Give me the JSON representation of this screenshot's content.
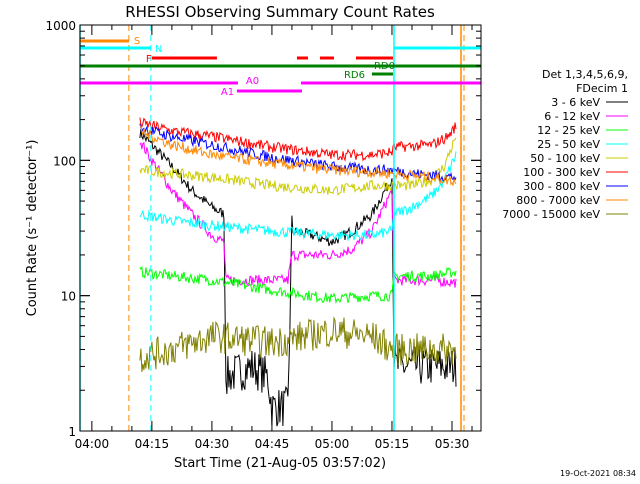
{
  "chart_data": {
    "type": "line",
    "title": "RHESSI Observing Summary Count Rates",
    "xlabel": "Start Time (21-Aug-05 03:57:02)",
    "ylabel": "Count Rate (s⁻¹ detector⁻¹)",
    "y_scale": "log",
    "ylim": [
      1,
      1000
    ],
    "xlim": [
      "03:57:02",
      "05:37:15"
    ],
    "x_ticks": [
      "04:00",
      "04:15",
      "04:30",
      "04:45",
      "05:00",
      "05:15",
      "05:30"
    ],
    "y_ticks": [
      "1",
      "10",
      "100",
      "1000"
    ],
    "grid": false,
    "legend_position": "right",
    "legend_header": [
      "Det 1,3,4,5,6,9,",
      "FDecim 1"
    ],
    "series": [
      {
        "name": "3 - 6 keV",
        "color": "#000000",
        "points": [
          [
            "04:12",
            160
          ],
          [
            "04:15",
            130
          ],
          [
            "04:20",
            90
          ],
          [
            "04:25",
            60
          ],
          [
            "04:30",
            45
          ],
          [
            "04:33",
            40
          ],
          [
            "04:33.5",
            2.5
          ],
          [
            "04:40",
            3
          ],
          [
            "04:44",
            2.5
          ],
          [
            "04:45",
            1.5
          ],
          [
            "04:49",
            1.5
          ],
          [
            "04:50",
            30
          ],
          [
            "04:55",
            28
          ],
          [
            "05:00",
            25
          ],
          [
            "05:05",
            30
          ],
          [
            "05:10",
            40
          ],
          [
            "05:15",
            75
          ],
          [
            "05:15.5",
            3
          ],
          [
            "05:25",
            3
          ],
          [
            "05:31",
            3
          ]
        ]
      },
      {
        "name": "6 - 12 keV",
        "color": "#ff00ff",
        "points": [
          [
            "04:12",
            140
          ],
          [
            "04:15",
            100
          ],
          [
            "04:20",
            60
          ],
          [
            "04:25",
            40
          ],
          [
            "04:30",
            28
          ],
          [
            "04:33",
            25
          ],
          [
            "04:33.5",
            13
          ],
          [
            "04:45",
            13
          ],
          [
            "04:49",
            13
          ],
          [
            "04:50",
            20
          ],
          [
            "05:00",
            20
          ],
          [
            "05:05",
            22
          ],
          [
            "05:10",
            30
          ],
          [
            "05:15",
            60
          ],
          [
            "05:15.5",
            13
          ],
          [
            "05:25",
            13
          ],
          [
            "05:31",
            12.5
          ]
        ]
      },
      {
        "name": "12 - 25 keV",
        "color": "#00ff00",
        "points": [
          [
            "04:12",
            15
          ],
          [
            "04:20",
            14
          ],
          [
            "04:30",
            13
          ],
          [
            "04:45",
            11
          ],
          [
            "05:00",
            9.5
          ],
          [
            "05:10",
            10
          ],
          [
            "05:15",
            10
          ],
          [
            "05:15.5",
            14
          ],
          [
            "05:25",
            14
          ],
          [
            "05:31",
            15
          ]
        ]
      },
      {
        "name": "25 - 50 keV",
        "color": "#00ffff",
        "points": [
          [
            "04:12",
            40
          ],
          [
            "04:20",
            36
          ],
          [
            "04:30",
            33
          ],
          [
            "04:45",
            30
          ],
          [
            "05:00",
            28
          ],
          [
            "05:10",
            28
          ],
          [
            "05:15",
            30
          ],
          [
            "05:15.5",
            40
          ],
          [
            "05:20",
            45
          ],
          [
            "05:25",
            55
          ],
          [
            "05:28",
            70
          ],
          [
            "05:31",
            110
          ]
        ]
      },
      {
        "name": "50 - 100 keV",
        "color": "#cccc00",
        "points": [
          [
            "04:12",
            85
          ],
          [
            "04:20",
            80
          ],
          [
            "04:30",
            75
          ],
          [
            "04:45",
            65
          ],
          [
            "05:00",
            60
          ],
          [
            "05:10",
            65
          ],
          [
            "05:15",
            65
          ],
          [
            "05:20",
            65
          ],
          [
            "05:25",
            72
          ],
          [
            "05:28",
            90
          ],
          [
            "05:31",
            150
          ]
        ]
      },
      {
        "name": "100 - 300 keV",
        "color": "#ff0000",
        "points": [
          [
            "04:12",
            190
          ],
          [
            "04:20",
            165
          ],
          [
            "04:30",
            150
          ],
          [
            "04:45",
            125
          ],
          [
            "05:00",
            110
          ],
          [
            "05:10",
            110
          ],
          [
            "05:15",
            115
          ],
          [
            "05:15.5",
            125
          ],
          [
            "05:25",
            130
          ],
          [
            "05:29",
            150
          ],
          [
            "05:31",
            180
          ]
        ]
      },
      {
        "name": "300 - 800 keV",
        "color": "#0000ff",
        "points": [
          [
            "04:12",
            175
          ],
          [
            "04:20",
            150
          ],
          [
            "04:30",
            130
          ],
          [
            "04:45",
            105
          ],
          [
            "05:00",
            90
          ],
          [
            "05:10",
            85
          ],
          [
            "05:15",
            85
          ],
          [
            "05:20",
            80
          ],
          [
            "05:31",
            75
          ]
        ]
      },
      {
        "name": "800 - 7000 keV",
        "color": "#ff8800",
        "points": [
          [
            "04:12",
            165
          ],
          [
            "04:20",
            130
          ],
          [
            "04:30",
            110
          ],
          [
            "04:45",
            95
          ],
          [
            "05:00",
            85
          ],
          [
            "05:15",
            80
          ],
          [
            "05:25",
            75
          ],
          [
            "05:31",
            70
          ]
        ]
      },
      {
        "name": "7000 - 15000 keV",
        "color": "#808000",
        "points": [
          [
            "04:12",
            3.5
          ],
          [
            "04:20",
            4
          ],
          [
            "04:30",
            5
          ],
          [
            "04:45",
            4.5
          ],
          [
            "05:00",
            5.5
          ],
          [
            "05:10",
            5
          ],
          [
            "05:15",
            4
          ],
          [
            "05:25",
            4
          ],
          [
            "05:31",
            4
          ]
        ]
      }
    ],
    "vertical_markers": [
      {
        "time": "03:57:02",
        "color": "#00ffff",
        "style": "solid"
      },
      {
        "time": "04:09:15",
        "color": "#ff8800",
        "style": "dashed"
      },
      {
        "time": "04:14:45",
        "color": "#00ffff",
        "style": "dashed"
      },
      {
        "time": "05:15:30",
        "color": "#00ffff",
        "style": "solid"
      },
      {
        "time": "05:32:15",
        "color": "#ff8800",
        "style": "solid"
      },
      {
        "time": "05:33:00",
        "color": "#ff8800",
        "style": "dashed"
      }
    ],
    "flags": [
      {
        "label": "S",
        "color": "#ff8800",
        "intervals": [
          [
            "03:57:02",
            "04:09:15"
          ]
        ]
      },
      {
        "label": "N",
        "color": "#00ffff",
        "intervals": [
          [
            "03:57:02",
            "04:14:45"
          ],
          [
            "05:15:30",
            "05:37:15"
          ]
        ]
      },
      {
        "label": "F",
        "color": "#ff0000",
        "intervals": [
          [
            "04:15:00",
            "04:31:15"
          ],
          [
            "04:51:15",
            "04:54:00"
          ],
          [
            "04:57:00",
            "05:00:30"
          ],
          [
            "05:06:00",
            "05:15:15"
          ]
        ]
      },
      {
        "label": "RD0",
        "color": "#008000",
        "intervals": [
          [
            "03:57:02",
            "05:37:15"
          ]
        ]
      },
      {
        "label": "RD6",
        "color": "#008000",
        "intervals": [
          [
            "05:10:00",
            "05:15:15"
          ]
        ]
      },
      {
        "label": "A0",
        "color": "#ff00ff",
        "intervals": [
          [
            "03:57:02",
            "04:36:30"
          ],
          [
            "04:52:15",
            "05:37:15"
          ]
        ]
      },
      {
        "label": "A1",
        "color": "#ff00ff",
        "intervals": [
          [
            "04:36:15",
            "04:52:30"
          ]
        ]
      }
    ]
  },
  "footer_timestamp": "19-Oct-2021 08:34"
}
